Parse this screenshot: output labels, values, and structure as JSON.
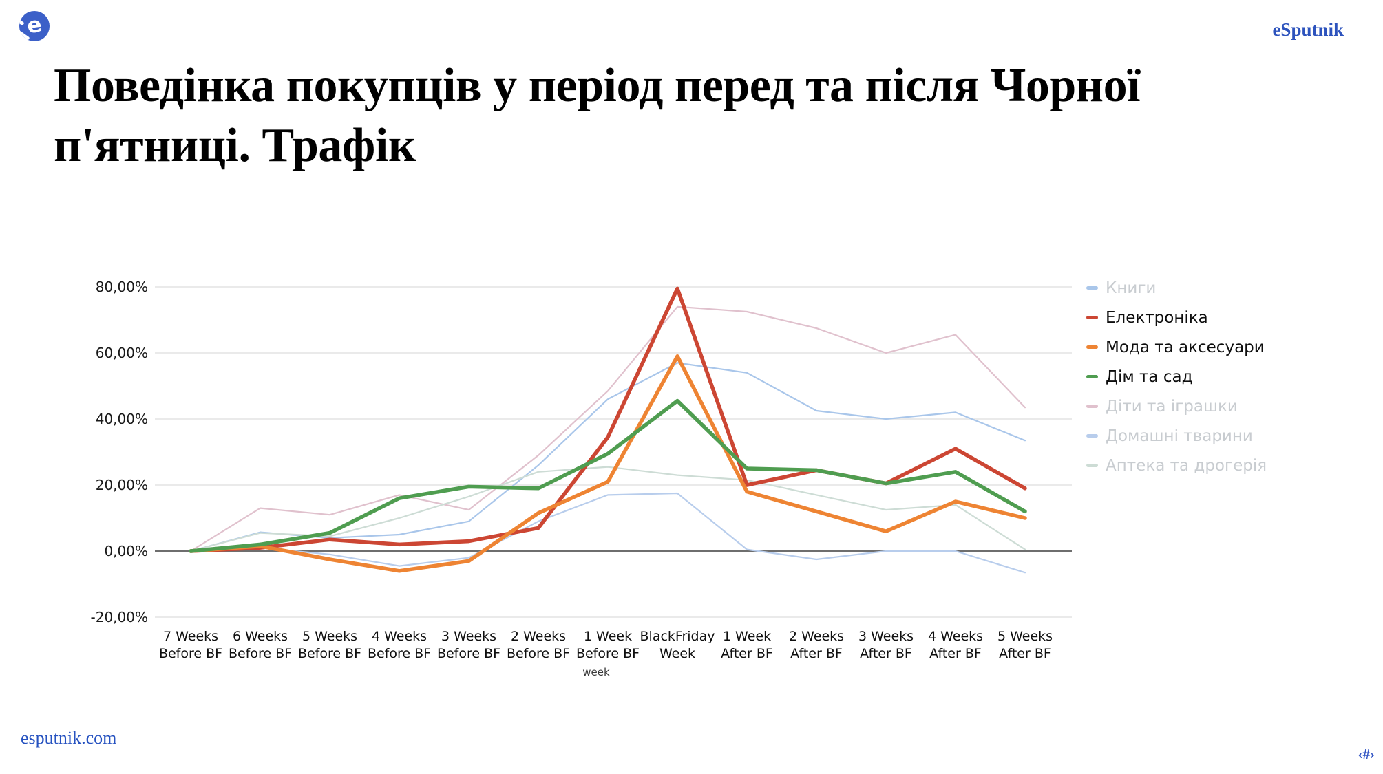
{
  "header": {
    "brand": "eSputnik"
  },
  "logo": {
    "letter": "e"
  },
  "title_lines": [
    "Поведінка покупців у період перед та після Чорної",
    "п'ятниці. Трафік"
  ],
  "footer": {
    "site": "esputnik.com",
    "slide_number": "‹#›"
  },
  "colors": {
    "brand_blue": "#2d53bd",
    "grid": "#e4e4e4",
    "zero_line": "#6e6e6e",
    "dimmed_legend_text": "#c8ccd0"
  },
  "chart_data": {
    "type": "line",
    "title": "",
    "xlabel": "week",
    "ylabel": "",
    "ylim": [
      -20,
      80
    ],
    "grid": true,
    "legend_position": "right",
    "y_ticks": [
      {
        "label": "80,00%",
        "value": 80
      },
      {
        "label": "60,00%",
        "value": 60
      },
      {
        "label": "40,00%",
        "value": 40
      },
      {
        "label": "20,00%",
        "value": 20
      },
      {
        "label": "0,00%",
        "value": 0
      },
      {
        "label": "-20,00%",
        "value": -20
      }
    ],
    "categories": [
      [
        "7 Weeks",
        "Before BF"
      ],
      [
        "6 Weeks",
        "Before BF"
      ],
      [
        "5 Weeks",
        "Before BF"
      ],
      [
        "4 Weeks",
        "Before BF"
      ],
      [
        "3 Weeks",
        "Before BF"
      ],
      [
        "2 Weeks",
        "Before BF"
      ],
      [
        "1 Week",
        "Before BF"
      ],
      [
        "BlackFriday",
        "Week"
      ],
      [
        "1 Week",
        "After BF"
      ],
      [
        "2 Weeks",
        "After BF"
      ],
      [
        "3 Weeks",
        "After BF"
      ],
      [
        "4 Weeks",
        "After BF"
      ],
      [
        "5 Weeks",
        "After BF"
      ]
    ],
    "series": [
      {
        "name": "Книги",
        "color": "#a9c6ea",
        "dimmed": true,
        "values": [
          0,
          5.7,
          4,
          5,
          9,
          26,
          46,
          57,
          54,
          42.5,
          40,
          42,
          33.5
        ]
      },
      {
        "name": "Електроніка",
        "color": "#cc4633",
        "dimmed": false,
        "values": [
          0,
          1,
          3.5,
          2,
          3,
          7,
          34.5,
          79.5,
          20,
          24.5,
          20.5,
          31,
          19
        ]
      },
      {
        "name": "Мода та аксесуари",
        "color": "#ee8433",
        "dimmed": false,
        "values": [
          0,
          1.5,
          -2.5,
          -6,
          -3,
          11.5,
          21,
          59,
          18,
          12,
          6,
          15,
          10
        ]
      },
      {
        "name": "Дім та сад",
        "color": "#4f9d50",
        "dimmed": false,
        "values": [
          0,
          2,
          5.5,
          16,
          19.5,
          19,
          29.5,
          45.5,
          25,
          24.5,
          20.5,
          24,
          12
        ]
      },
      {
        "name": "Діти та іграшки",
        "color": "#e0c1cd",
        "dimmed": true,
        "values": [
          0,
          13,
          11,
          17,
          12.5,
          29,
          48.5,
          74,
          72.5,
          67.5,
          60,
          65.5,
          43.5
        ]
      },
      {
        "name": "Домашні тварини",
        "color": "#b8cdec",
        "dimmed": true,
        "values": [
          0,
          1,
          -1,
          -4.5,
          -2,
          9,
          17,
          17.5,
          0.5,
          -2.5,
          0,
          0,
          -6.5
        ]
      },
      {
        "name": "Аптека та дрогерія",
        "color": "#cddcd5",
        "dimmed": true,
        "values": [
          0,
          5.5,
          4.5,
          10,
          16.5,
          24,
          25.5,
          23,
          21.5,
          17,
          12.5,
          14,
          0.5
        ]
      }
    ]
  }
}
